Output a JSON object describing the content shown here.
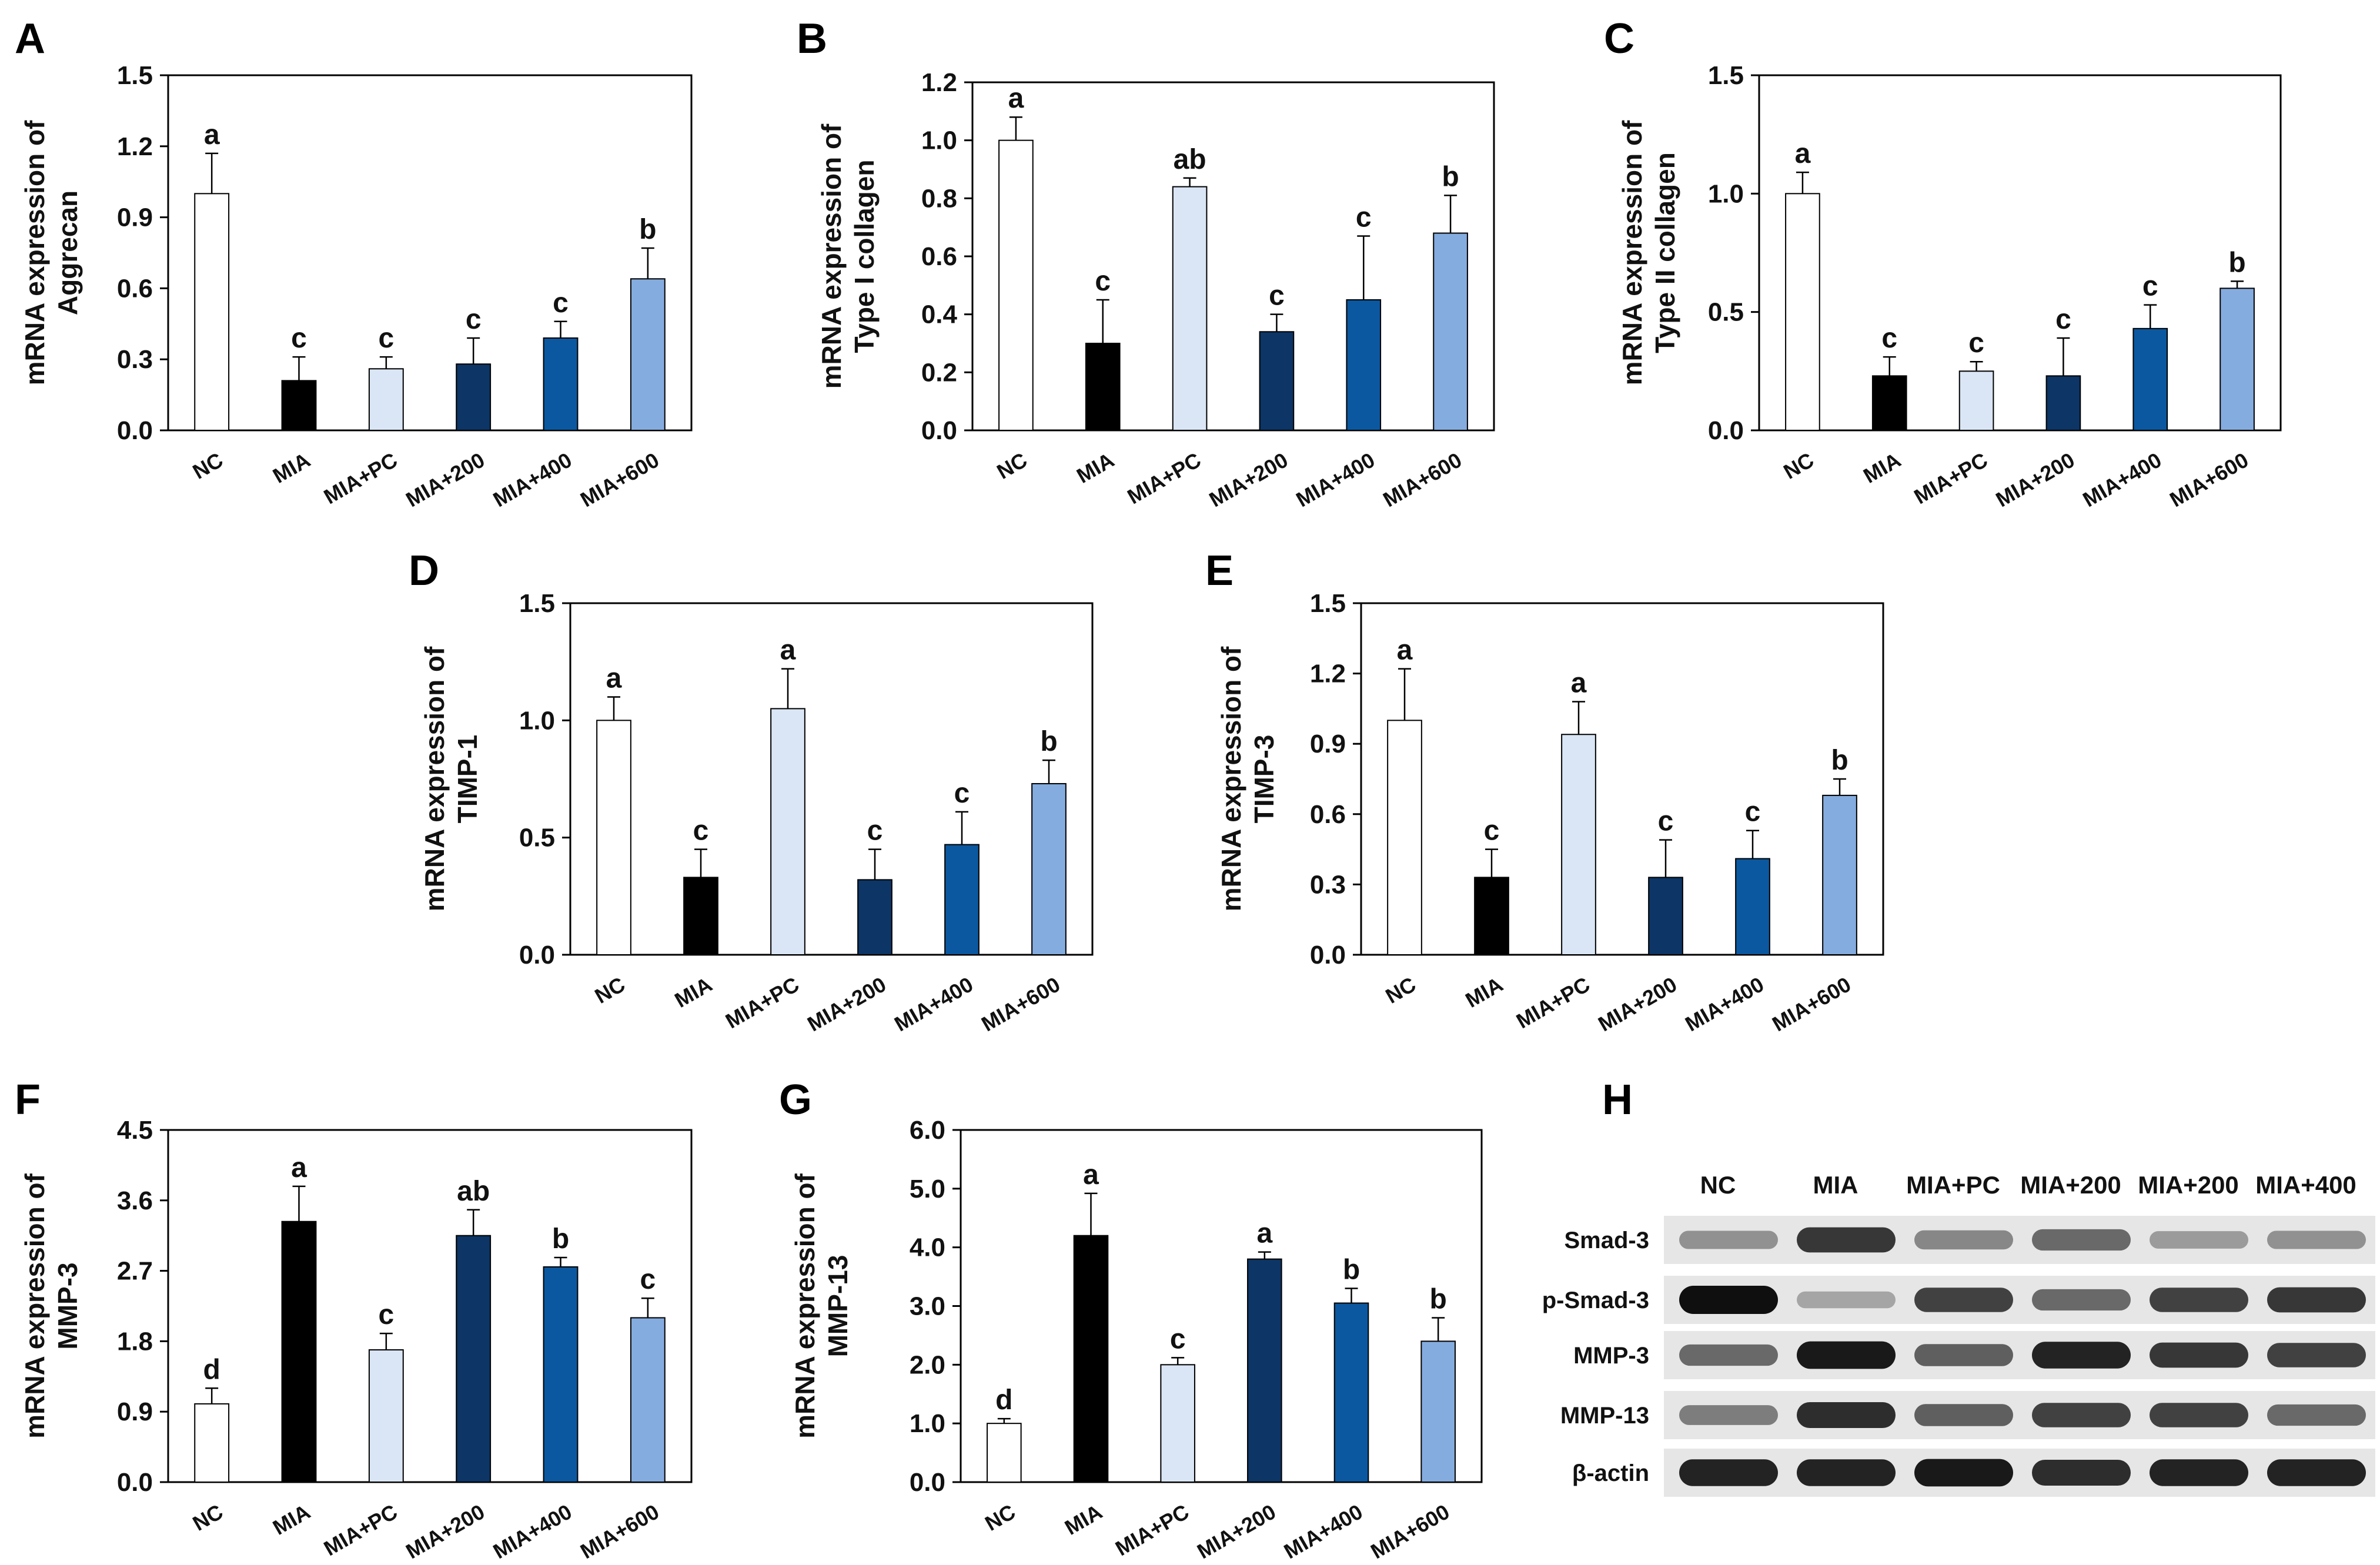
{
  "figure": {
    "bar_colors": {
      "NC": "#ffffff",
      "MIA": "#000000",
      "MIA+PC": "#dae6f6",
      "MIA+200": "#0d3566",
      "MIA+400": "#0b58a0",
      "MIA+600": "#85acdf"
    }
  },
  "chart_data": [
    {
      "panel": "A",
      "type": "bar",
      "ylabel": [
        "mRNA expression of",
        "Aggrecan"
      ],
      "categories": [
        "NC",
        "MIA",
        "MIA+PC",
        "MIA+200",
        "MIA+400",
        "MIA+600"
      ],
      "values": [
        1.0,
        0.21,
        0.26,
        0.28,
        0.39,
        0.64
      ],
      "errors": [
        0.17,
        0.1,
        0.05,
        0.11,
        0.07,
        0.13
      ],
      "letters": [
        "a",
        "c",
        "c",
        "c",
        "c",
        "b"
      ],
      "ylim": [
        0,
        1.5
      ],
      "yticks": [
        "0.0",
        "0.3",
        "0.6",
        "0.9",
        "1.2",
        "1.5"
      ]
    },
    {
      "panel": "B",
      "type": "bar",
      "ylabel": [
        "mRNA expression of",
        "Type I collagen"
      ],
      "categories": [
        "NC",
        "MIA",
        "MIA+PC",
        "MIA+200",
        "MIA+400",
        "MIA+600"
      ],
      "values": [
        1.0,
        0.3,
        0.84,
        0.34,
        0.45,
        0.68
      ],
      "errors": [
        0.08,
        0.15,
        0.03,
        0.06,
        0.22,
        0.13
      ],
      "letters": [
        "a",
        "c",
        "ab",
        "c",
        "c",
        "b"
      ],
      "ylim": [
        0,
        1.2
      ],
      "yticks": [
        "0.0",
        "0.2",
        "0.4",
        "0.6",
        "0.8",
        "1.0",
        "1.2"
      ]
    },
    {
      "panel": "C",
      "type": "bar",
      "ylabel": [
        "mRNA expression of",
        "Type II collagen"
      ],
      "categories": [
        "NC",
        "MIA",
        "MIA+PC",
        "MIA+200",
        "MIA+400",
        "MIA+600"
      ],
      "values": [
        1.0,
        0.23,
        0.25,
        0.23,
        0.43,
        0.6
      ],
      "errors": [
        0.09,
        0.08,
        0.04,
        0.16,
        0.1,
        0.03
      ],
      "letters": [
        "a",
        "c",
        "c",
        "c",
        "c",
        "b"
      ],
      "ylim": [
        0,
        1.5
      ],
      "yticks": [
        "0.0",
        "0.5",
        "1.0",
        "1.5"
      ]
    },
    {
      "panel": "D",
      "type": "bar",
      "ylabel": [
        "mRNA expression of",
        "TIMP-1"
      ],
      "categories": [
        "NC",
        "MIA",
        "MIA+PC",
        "MIA+200",
        "MIA+400",
        "MIA+600"
      ],
      "values": [
        1.0,
        0.33,
        1.05,
        0.32,
        0.47,
        0.73
      ],
      "errors": [
        0.1,
        0.12,
        0.17,
        0.13,
        0.14,
        0.1
      ],
      "letters": [
        "a",
        "c",
        "a",
        "c",
        "c",
        "b"
      ],
      "ylim": [
        0,
        1.5
      ],
      "yticks": [
        "0.0",
        "0.5",
        "1.0",
        "1.5"
      ]
    },
    {
      "panel": "E",
      "type": "bar",
      "ylabel": [
        "mRNA expression of",
        "TIMP-3"
      ],
      "categories": [
        "NC",
        "MIA",
        "MIA+PC",
        "MIA+200",
        "MIA+400",
        "MIA+600"
      ],
      "values": [
        1.0,
        0.33,
        0.94,
        0.33,
        0.41,
        0.68
      ],
      "errors": [
        0.22,
        0.12,
        0.14,
        0.16,
        0.12,
        0.07
      ],
      "letters": [
        "a",
        "c",
        "a",
        "c",
        "c",
        "b"
      ],
      "ylim": [
        0,
        1.5
      ],
      "yticks": [
        "0.0",
        "0.3",
        "0.6",
        "0.9",
        "1.2",
        "1.5"
      ]
    },
    {
      "panel": "F",
      "type": "bar",
      "ylabel": [
        "mRNA expression of",
        "MMP-3"
      ],
      "categories": [
        "NC",
        "MIA",
        "MIA+PC",
        "MIA+200",
        "MIA+400",
        "MIA+600"
      ],
      "values": [
        1.0,
        3.33,
        1.69,
        3.15,
        2.75,
        2.1
      ],
      "errors": [
        0.2,
        0.45,
        0.21,
        0.33,
        0.12,
        0.25
      ],
      "letters": [
        "d",
        "a",
        "c",
        "ab",
        "b",
        "c"
      ],
      "ylim": [
        0,
        4.5
      ],
      "yticks": [
        "0.0",
        "0.9",
        "1.8",
        "2.7",
        "3.6",
        "4.5"
      ]
    },
    {
      "panel": "G",
      "type": "bar",
      "ylabel": [
        "mRNA expression of",
        "MMP-13"
      ],
      "categories": [
        "NC",
        "MIA",
        "MIA+PC",
        "MIA+200",
        "MIA+400",
        "MIA+600"
      ],
      "values": [
        1.0,
        4.2,
        2.0,
        3.8,
        3.05,
        2.4
      ],
      "errors": [
        0.08,
        0.72,
        0.12,
        0.12,
        0.25,
        0.4
      ],
      "letters": [
        "d",
        "a",
        "c",
        "a",
        "b",
        "b"
      ],
      "ylim": [
        0,
        6.0
      ],
      "yticks": [
        "0.0",
        "1.0",
        "2.0",
        "3.0",
        "4.0",
        "5.0",
        "6.0"
      ]
    }
  ],
  "western_blot": {
    "panel": "H",
    "lanes": [
      "NC",
      "MIA",
      "MIA+PC",
      "MIA+200",
      "MIA+200",
      "MIA+400"
    ],
    "proteins": [
      "Smad-3",
      "p-Smad-3",
      "MMP-3",
      "MMP-13",
      "β-actin"
    ],
    "intensities": [
      [
        0.35,
        0.8,
        0.4,
        0.55,
        0.3,
        0.35
      ],
      [
        1.0,
        0.25,
        0.75,
        0.55,
        0.75,
        0.8
      ],
      [
        0.55,
        0.95,
        0.6,
        0.9,
        0.8,
        0.75
      ],
      [
        0.45,
        0.85,
        0.6,
        0.75,
        0.75,
        0.55
      ],
      [
        0.9,
        0.9,
        0.95,
        0.85,
        0.9,
        0.9
      ]
    ]
  }
}
